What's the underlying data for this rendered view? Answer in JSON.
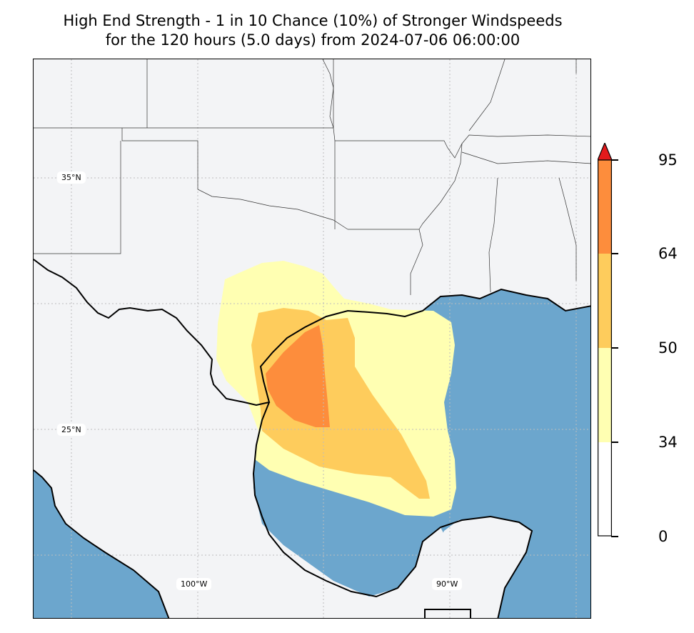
{
  "title": {
    "line1": "High End Strength - 1 in 10 Chance (10%) of Stronger Windspeeds",
    "line2": "for the 120 hours (5.0 days) from 2024-07-06 06:00:00"
  },
  "map": {
    "gridlines": {
      "latitudes": [
        "35°N",
        "25°N"
      ],
      "longitudes": [
        "100°W",
        "90°W"
      ]
    },
    "colors": {
      "land": "#f3f4f6",
      "water": "#6ca6cd",
      "band_34_50": "#ffffb2",
      "band_50_64": "#fecc5c",
      "band_64_95": "#fd8d3c",
      "above_95": "#e31a1c"
    }
  },
  "colorbar": {
    "ticks": [
      "95",
      "64",
      "50",
      "34",
      "0"
    ],
    "extend": "max"
  }
}
